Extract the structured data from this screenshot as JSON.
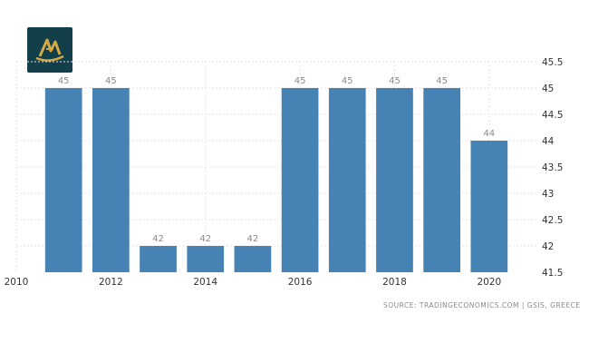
{
  "chart_data": {
    "type": "bar",
    "x": [
      2011,
      2012,
      2013,
      2014,
      2015,
      2016,
      2017,
      2018,
      2019,
      2020
    ],
    "values": [
      45,
      45,
      42,
      42,
      42,
      45,
      45,
      45,
      45,
      44
    ],
    "data_labels": [
      "45",
      "45",
      "42",
      "42",
      "42",
      "45",
      "45",
      "45",
      "45",
      "44"
    ],
    "x_ticks": [
      "2010",
      "2012",
      "2014",
      "2016",
      "2018",
      "2020"
    ],
    "x_tick_values": [
      2010,
      2012,
      2014,
      2016,
      2018,
      2020
    ],
    "xlim": [
      2010,
      2021
    ],
    "y_ticks": [
      "41.5",
      "42",
      "42.5",
      "43",
      "43.5",
      "44",
      "44.5",
      "45",
      "45.5"
    ],
    "y_tick_values": [
      41.5,
      42,
      42.5,
      43,
      43.5,
      44,
      44.5,
      45,
      45.5
    ],
    "ylim": [
      41.5,
      45.5
    ],
    "y_axis_position": "right",
    "grid": true,
    "bar_color": "#4682b4"
  },
  "source": "SOURCE: TRADINGECONOMICS.COM | GSIS, GREECE",
  "logo": {
    "icon": "golden-boat-logo-icon",
    "background": "#123f4a",
    "accent": "#d4a843"
  }
}
